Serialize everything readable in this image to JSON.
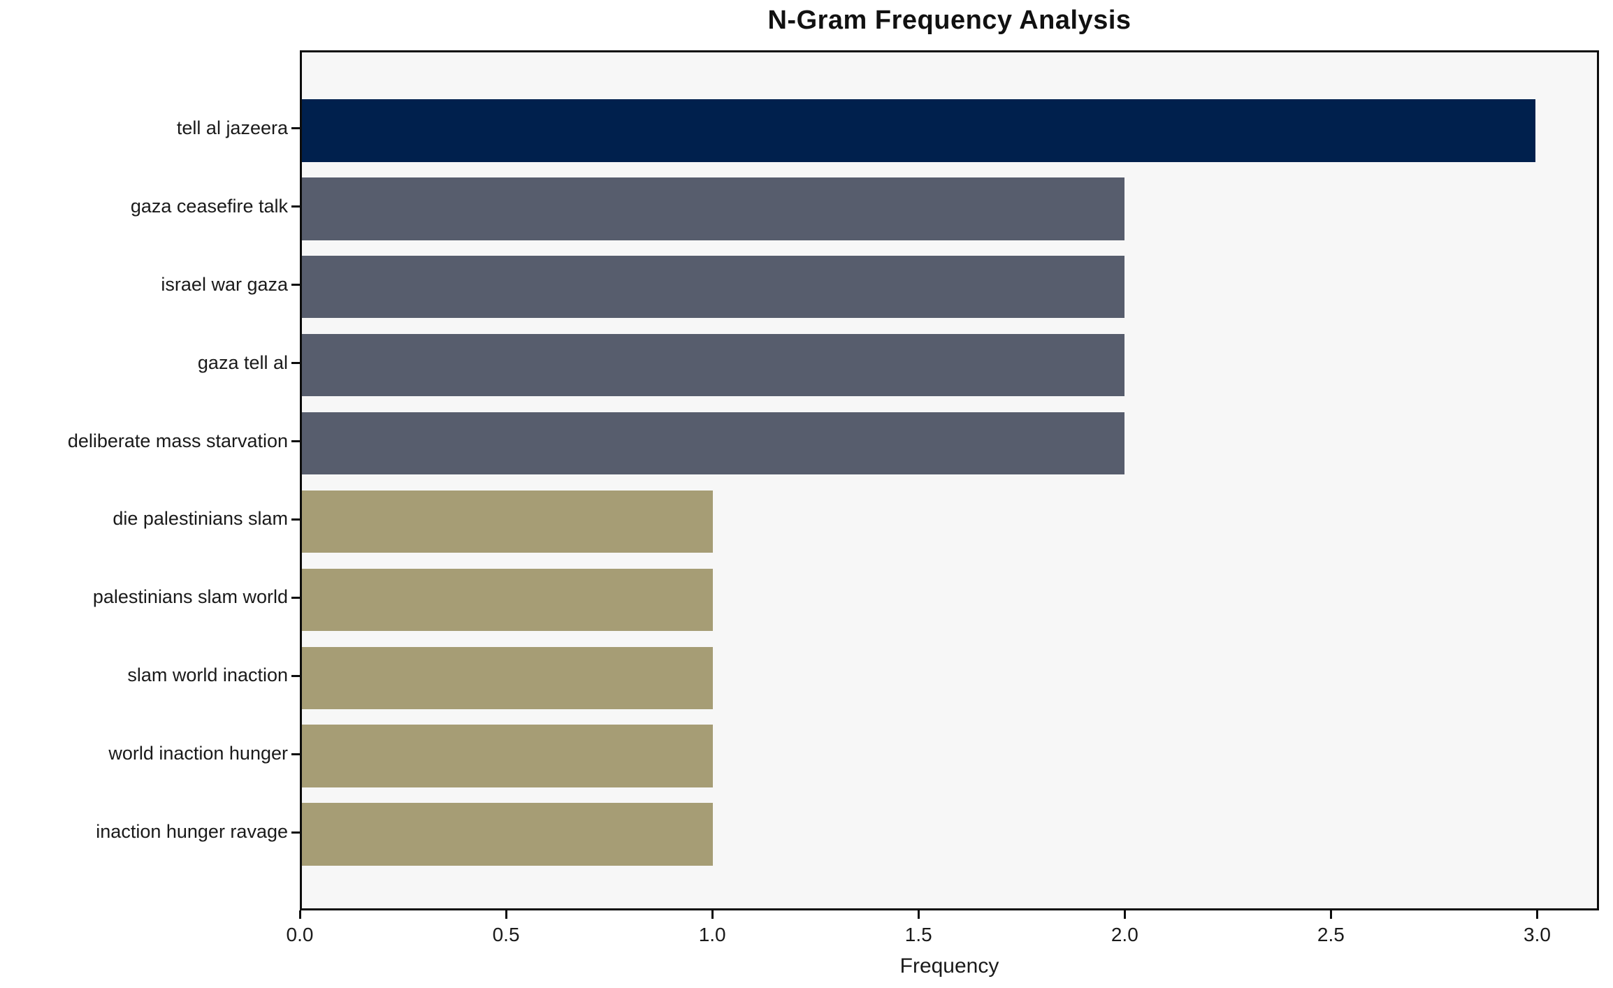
{
  "figure": {
    "background": "#ffffff",
    "plot_background": "#f7f7f7",
    "spine_color": "#0d0d0d",
    "text_color": "#1a1a1a"
  },
  "chart_data": {
    "type": "bar",
    "orientation": "horizontal",
    "title": "N-Gram Frequency Analysis",
    "xlabel": "Frequency",
    "ylabel": "",
    "categories": [
      "tell al jazeera",
      "gaza ceasefire talk",
      "israel war gaza",
      "gaza tell al",
      "deliberate mass starvation",
      "die palestinians slam",
      "palestinians slam world",
      "slam world inaction",
      "world inaction hunger",
      "inaction hunger ravage"
    ],
    "values": [
      3,
      2,
      2,
      2,
      2,
      1,
      1,
      1,
      1,
      1
    ],
    "bar_colors": [
      "#00204d",
      "#575d6d",
      "#575d6d",
      "#575d6d",
      "#575d6d",
      "#a69d75",
      "#a69d75",
      "#a69d75",
      "#a69d75",
      "#a69d75"
    ],
    "xlim": [
      0,
      3.15
    ],
    "xticks": [
      0.0,
      0.5,
      1.0,
      1.5,
      2.0,
      2.5,
      3.0
    ],
    "xtick_labels": [
      "0.0",
      "0.5",
      "1.0",
      "1.5",
      "2.0",
      "2.5",
      "3.0"
    ],
    "bar_height_fraction": 0.8,
    "grid": false,
    "legend": false
  }
}
